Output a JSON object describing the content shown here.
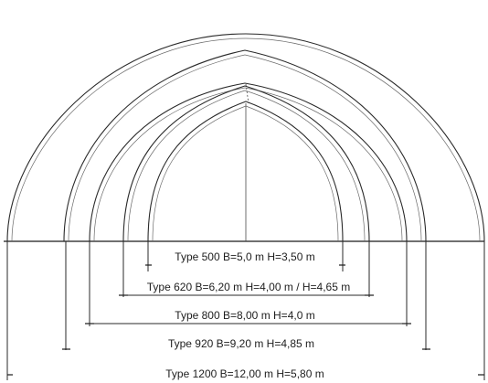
{
  "labels": {
    "type500": "Type 500 B=5,0 m H=3,50 m",
    "type620": "Type 620 B=6,20 m H=4,00 m / H=4,65 m",
    "type800": "Type 800 B=8,00 m H=4,0 m",
    "type920": "Type 920 B=9,20 m H=4,85 m",
    "type1200": "Type 1200 B=12,00 m H=5,80 m"
  }
}
